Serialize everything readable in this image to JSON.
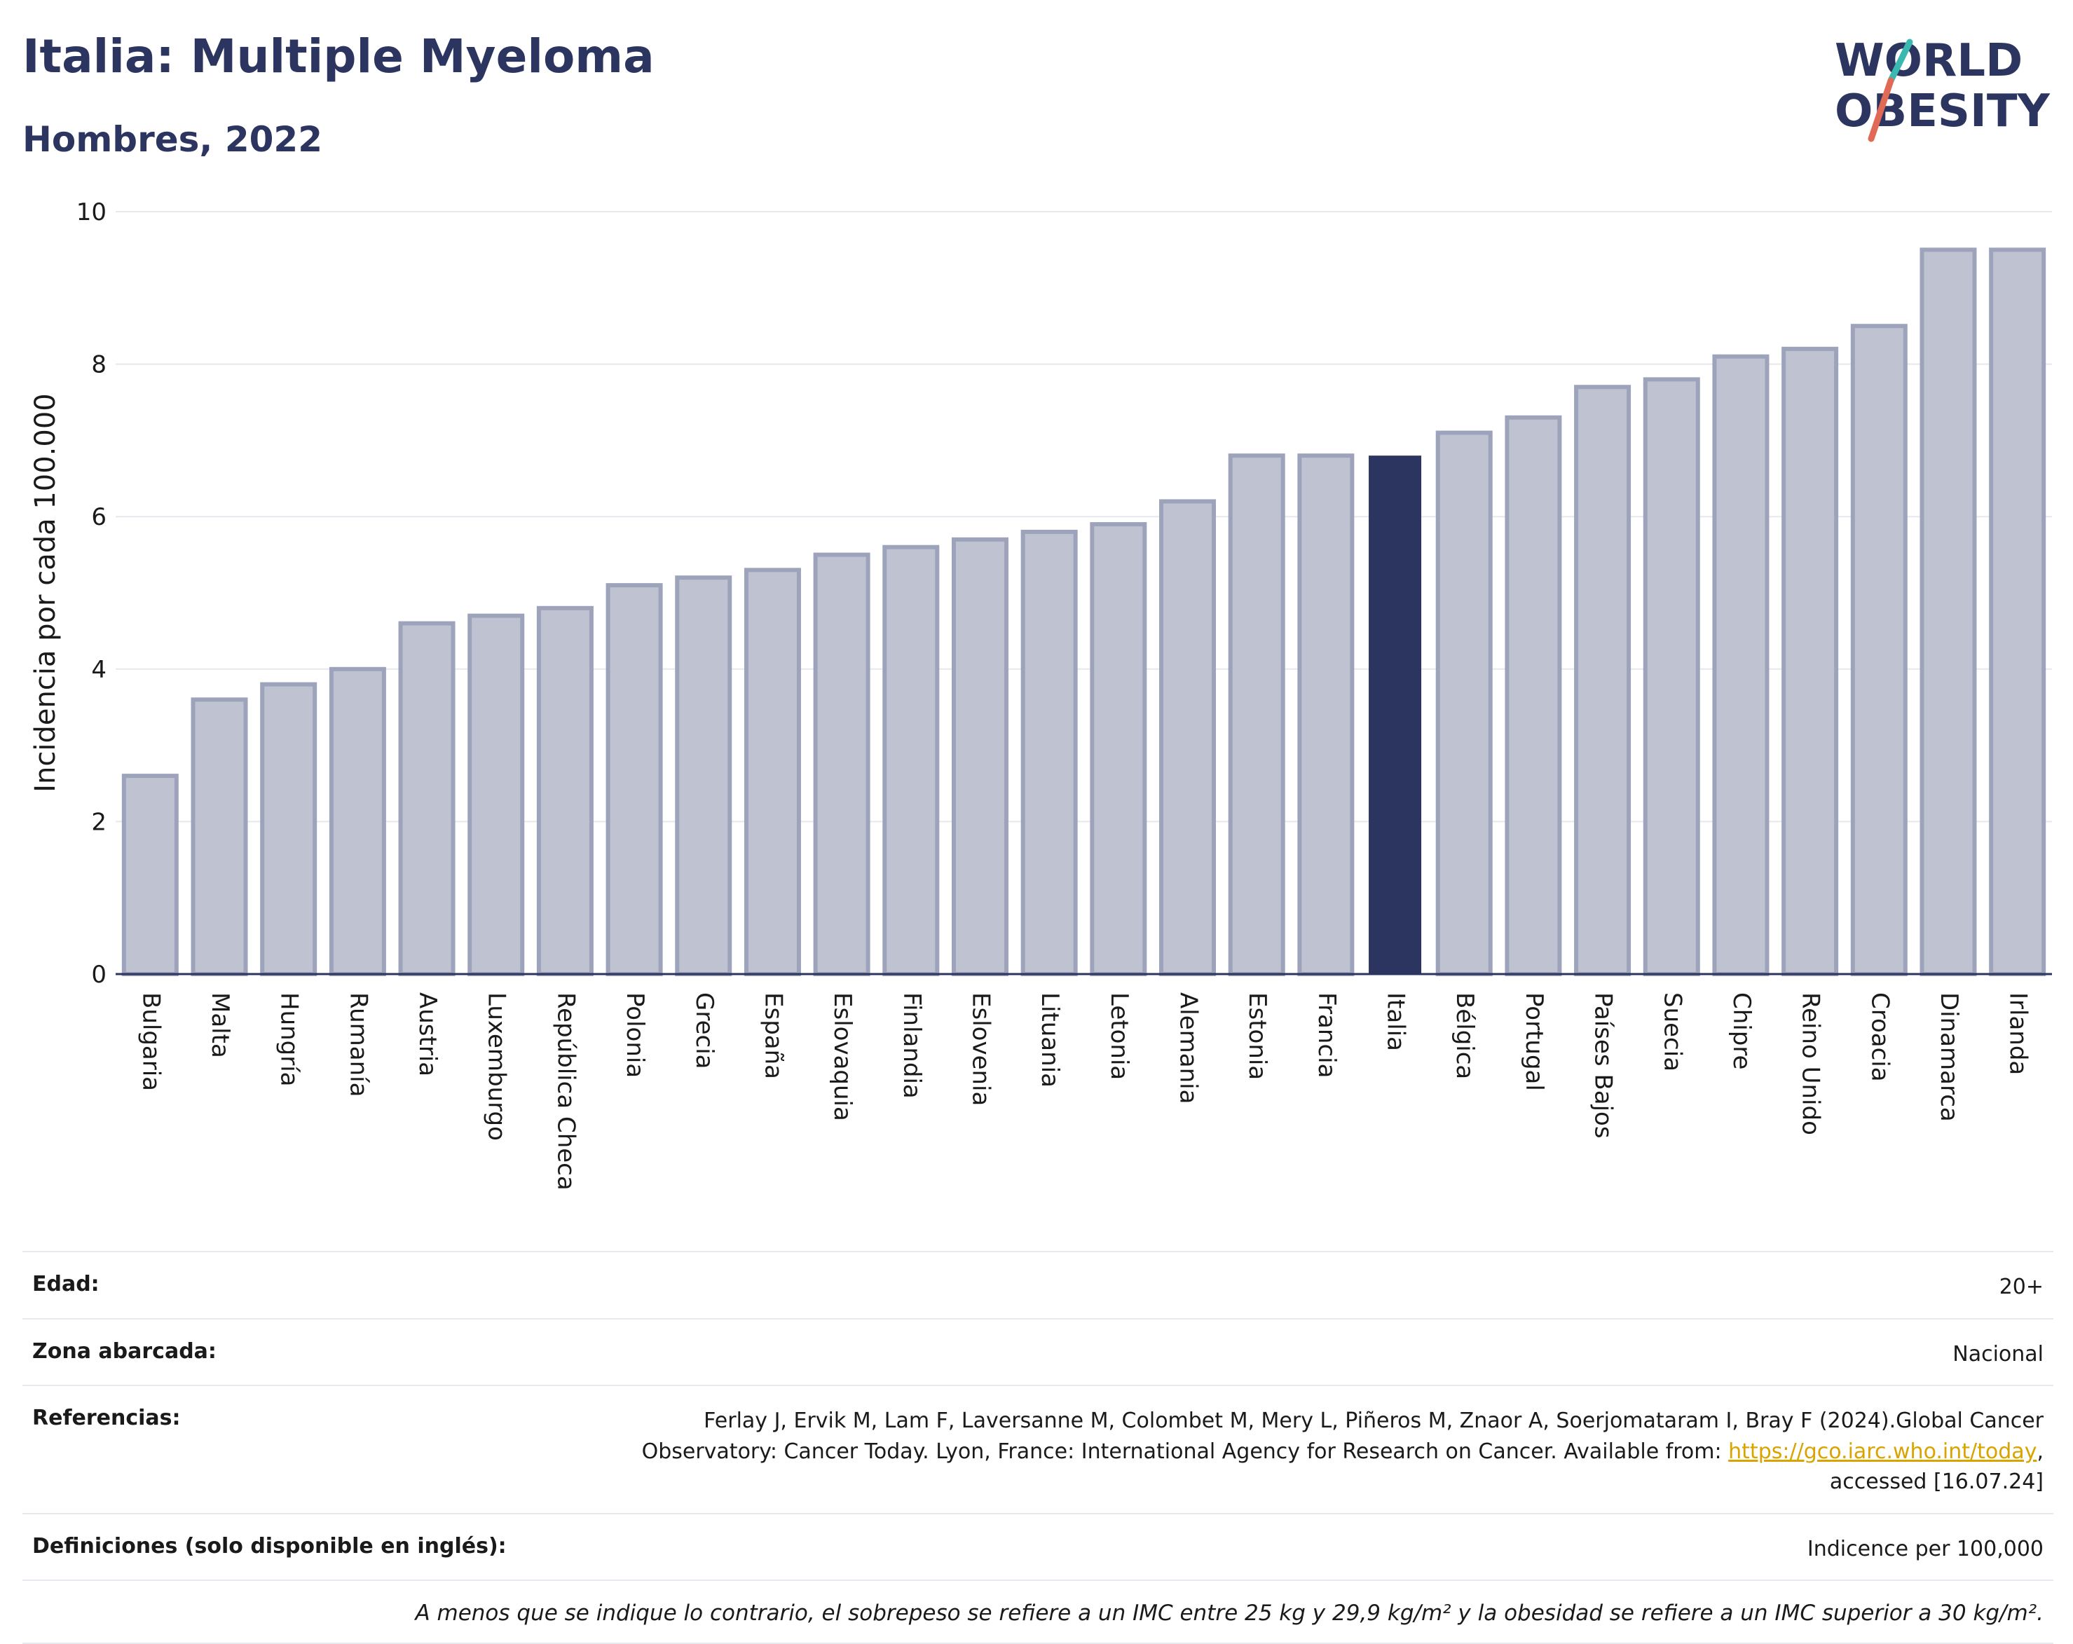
{
  "header": {
    "title": "Italia: Multiple Myeloma",
    "subtitle": "Hombres, 2022"
  },
  "logo": {
    "line1": "WORLD",
    "line2": "OBESITY",
    "colors": {
      "text": "#2b3560",
      "slash_top": "#3bb8b0",
      "slash_bottom": "#e06a55"
    }
  },
  "chart_data": {
    "type": "bar",
    "ylabel": "Incidencia por cada 100.000",
    "ylim": [
      0,
      10
    ],
    "yticks": [
      0,
      2,
      4,
      6,
      8,
      10
    ],
    "grid": true,
    "highlight": "Italia",
    "colors": {
      "bar": "#bfc3d1",
      "bar_border": "#9da3bb",
      "highlight": "#2b3560"
    },
    "categories": [
      "Bulgaria",
      "Malta",
      "Hungría",
      "Rumanía",
      "Austria",
      "Luxemburgo",
      "República Checa",
      "Polonia",
      "Grecia",
      "España",
      "Eslovaquia",
      "Finlandia",
      "Eslovenia",
      "Lituania",
      "Letonia",
      "Alemania",
      "Estonia",
      "Francia",
      "Italia",
      "Bélgica",
      "Portugal",
      "Países Bajos",
      "Suecia",
      "Chipre",
      "Reino Unido",
      "Croacia",
      "Dinamarca",
      "Irlanda"
    ],
    "values": [
      2.6,
      3.6,
      3.8,
      4.0,
      4.6,
      4.7,
      4.8,
      5.1,
      5.2,
      5.3,
      5.5,
      5.6,
      5.7,
      5.8,
      5.9,
      6.2,
      6.8,
      6.8,
      6.8,
      7.1,
      7.3,
      7.7,
      7.8,
      8.1,
      8.2,
      8.5,
      9.5,
      9.5
    ]
  },
  "info": {
    "age_label": "Edad:",
    "age_value": "20+",
    "area_label": "Zona abarcada:",
    "area_value": "Nacional",
    "refs_label": "Referencias:",
    "refs_text": "Ferlay J, Ervik M, Lam F, Laversanne M, Colombet M, Mery L, Piñeros M, Znaor A, Soerjomataram I, Bray F (2024).Global Cancer Observatory: Cancer Today. Lyon, France: International Agency for Research on Cancer. Available from: ",
    "refs_link": "https://gco.iarc.who.int/today",
    "refs_tail": ", accessed [16.07.24]",
    "defs_label": "Definiciones (solo disponible en inglés):",
    "defs_value": "Indicence per 100,000",
    "note": "A menos que se indique lo contrario, el sobrepeso se refiere a un IMC entre 25 kg y 29,9 kg/m² y la obesidad se refiere a un IMC superior a 30 kg/m²."
  }
}
